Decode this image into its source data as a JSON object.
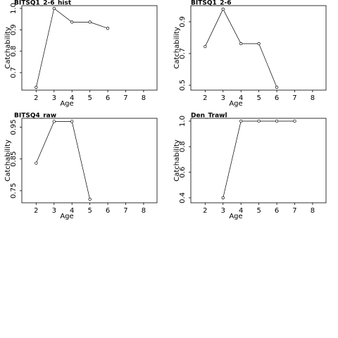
{
  "chart_data": [
    {
      "type": "line",
      "title": "BITSQ1_2-6_hist",
      "x_label": "Age",
      "y_label": "Catchability",
      "x": [
        2,
        3,
        4,
        5,
        6
      ],
      "values": [
        0.631,
        1.0,
        0.936,
        0.936,
        0.907
      ],
      "xlim": [
        1.2,
        8.75
      ],
      "ylim": [
        0.618,
        1.013
      ],
      "xticks": [
        2,
        3,
        4,
        5,
        6,
        7,
        8
      ],
      "yticks": [
        0.7,
        0.8,
        0.9,
        {
          "value": 1.0,
          "label": "1.0"
        }
      ]
    },
    {
      "type": "line",
      "title": "BITSQ1_2-6",
      "x_label": "Age",
      "y_label": "Catchability",
      "x": [
        2,
        3,
        4,
        5,
        6
      ],
      "values": [
        0.744,
        0.98,
        0.762,
        0.762,
        0.487
      ],
      "xlim": [
        1.2,
        8.75
      ],
      "ylim": [
        0.469,
        1.002
      ],
      "xticks": [
        2,
        3,
        4,
        5,
        6,
        7,
        8
      ],
      "yticks": [
        0.5,
        0.7,
        0.9
      ]
    },
    {
      "type": "line",
      "title": "BITSQ4_raw",
      "x_label": "Age",
      "y_label": "Catchability",
      "x": [
        2,
        3,
        4,
        5
      ],
      "values": [
        0.837,
        0.968,
        0.968,
        0.723
      ],
      "xlim": [
        1.2,
        8.75
      ],
      "ylim": [
        0.712,
        0.978
      ],
      "xticks": [
        2,
        3,
        4,
        5,
        6,
        7,
        8
      ],
      "yticks": [
        0.75,
        0.85,
        0.95
      ]
    },
    {
      "type": "line",
      "title": "Den_Trawl",
      "x_label": "Age",
      "y_label": "Catchability",
      "x": [
        3,
        4,
        5,
        6,
        7
      ],
      "values": [
        0.4,
        1.0,
        1.0,
        1.0,
        1.0
      ],
      "xlim": [
        1.2,
        8.75
      ],
      "ylim": [
        0.361,
        1.022
      ],
      "xticks": [
        2,
        3,
        4,
        5,
        6,
        7,
        8
      ],
      "yticks": [
        0.4,
        0.6,
        0.8,
        {
          "value": 1.0,
          "label": "1.0"
        }
      ]
    }
  ]
}
